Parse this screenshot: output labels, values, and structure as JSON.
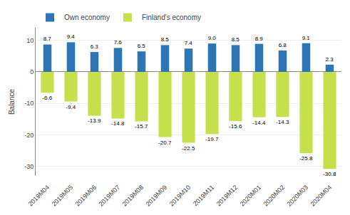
{
  "chart_data": {
    "type": "bar",
    "categories": [
      "2019M04",
      "2019M05",
      "2019M06",
      "2019M07",
      "2019M08",
      "2019M09",
      "2019M10",
      "2019M11",
      "2019M12",
      "2020M01",
      "2020M02",
      "2020M03",
      "2020M04"
    ],
    "series": [
      {
        "name": "Own economy",
        "color": "#2e75b6",
        "values": [
          8.7,
          9.4,
          6.3,
          7.6,
          6.5,
          8.5,
          7.4,
          9.0,
          8.5,
          8.9,
          6.8,
          9.1,
          2.3
        ],
        "value_labels": [
          "8.7",
          "9.4",
          "6.3",
          "7.6",
          "6.5",
          "8.5",
          "7.4",
          "9.0",
          "8.5",
          "8.9",
          "6.8",
          "9.1",
          "2.3"
        ]
      },
      {
        "name": "Finland's economy",
        "color": "#c5e04a",
        "values": [
          -6.6,
          -9.4,
          -13.9,
          -14.8,
          -15.7,
          -20.7,
          -22.5,
          -19.7,
          -15.6,
          -14.4,
          -14.3,
          -25.8,
          -30.8
        ]
      }
    ],
    "ylabel": "Balance",
    "ylim": [
      -33,
      14
    ],
    "yticks": [
      -30,
      -20,
      -10,
      0,
      10
    ],
    "grid": true,
    "legend": "upper left",
    "data_labels": true
  }
}
